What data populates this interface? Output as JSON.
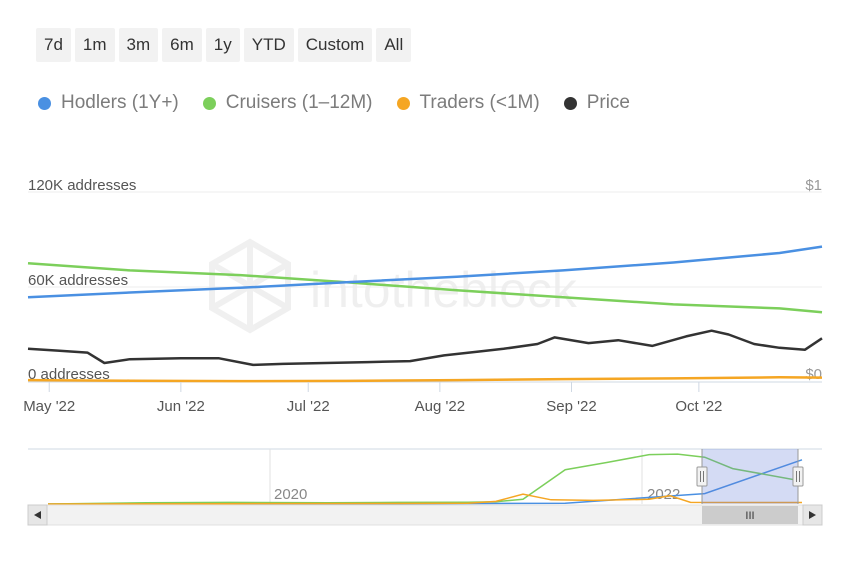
{
  "range_buttons": [
    "7d",
    "1m",
    "3m",
    "6m",
    "1y",
    "YTD",
    "Custom",
    "All"
  ],
  "legend": [
    {
      "label": "Hodlers (1Y+)",
      "color": "#4a90e2"
    },
    {
      "label": "Cruisers (1–12M)",
      "color": "#7ccf5b"
    },
    {
      "label": "Traders (<1M)",
      "color": "#f5a623"
    },
    {
      "label": "Price",
      "color": "#333333"
    }
  ],
  "watermark": "intotheblock",
  "navigator": {
    "year_labels": [
      "2020",
      "2022"
    ],
    "scroll_grip": "III"
  },
  "chart_data": {
    "type": "line",
    "y_axis_left": {
      "ticks": [
        "120K addresses",
        "60K addresses",
        "0 addresses"
      ],
      "range": [
        0,
        120000
      ]
    },
    "y_axis_right": {
      "ticks": [
        "$1",
        "$0"
      ],
      "range": [
        0,
        1
      ]
    },
    "x_tick_labels": [
      "May '22",
      "Jun '22",
      "Jul '22",
      "Aug '22",
      "Sep '22",
      "Oct '22"
    ],
    "x_range": [
      "2022-04-26",
      "2022-10-30"
    ],
    "series": [
      {
        "name": "Hodlers (1Y+)",
        "color": "#4a90e2",
        "axis": "left",
        "x": [
          "2022-04-26",
          "2022-05-20",
          "2022-06-15",
          "2022-07-10",
          "2022-08-05",
          "2022-08-30",
          "2022-09-25",
          "2022-10-20",
          "2022-10-30"
        ],
        "y": [
          53500,
          56500,
          59500,
          63000,
          66500,
          70500,
          75500,
          81500,
          85500
        ]
      },
      {
        "name": "Cruisers (1–12M)",
        "color": "#7ccf5b",
        "axis": "left",
        "x": [
          "2022-04-26",
          "2022-05-20",
          "2022-06-15",
          "2022-07-10",
          "2022-08-05",
          "2022-08-30",
          "2022-09-25",
          "2022-10-20",
          "2022-10-30"
        ],
        "y": [
          75000,
          70500,
          67500,
          63000,
          58000,
          53500,
          49000,
          46500,
          44000
        ]
      },
      {
        "name": "Traders (<1M)",
        "color": "#f5a623",
        "axis": "left",
        "x": [
          "2022-04-26",
          "2022-05-20",
          "2022-06-15",
          "2022-07-10",
          "2022-08-05",
          "2022-08-30",
          "2022-09-25",
          "2022-10-20",
          "2022-10-30"
        ],
        "y": [
          1200,
          800,
          600,
          700,
          1200,
          1800,
          2300,
          3000,
          2800
        ]
      },
      {
        "name": "Price",
        "color": "#333333",
        "axis": "right",
        "x": [
          "2022-04-26",
          "2022-05-03",
          "2022-05-10",
          "2022-05-14",
          "2022-05-20",
          "2022-06-01",
          "2022-06-10",
          "2022-06-18",
          "2022-06-25",
          "2022-07-05",
          "2022-07-15",
          "2022-07-25",
          "2022-08-02",
          "2022-08-10",
          "2022-08-16",
          "2022-08-24",
          "2022-08-28",
          "2022-09-05",
          "2022-09-12",
          "2022-09-20",
          "2022-09-28",
          "2022-10-04",
          "2022-10-08",
          "2022-10-14",
          "2022-10-20",
          "2022-10-26",
          "2022-10-30"
        ],
        "y": [
          0.175,
          0.165,
          0.155,
          0.1,
          0.12,
          0.125,
          0.125,
          0.09,
          0.095,
          0.1,
          0.105,
          0.11,
          0.14,
          0.16,
          0.175,
          0.2,
          0.235,
          0.205,
          0.22,
          0.19,
          0.24,
          0.27,
          0.25,
          0.2,
          0.18,
          0.17,
          0.23
        ]
      }
    ],
    "navigator_range": [
      "2018-05-01",
      "2022-10-30"
    ],
    "navigator_series": [
      {
        "name": "Hodlers (1Y+)",
        "color": "#4a90e2",
        "x": [
          "2018-05-01",
          "2019-06-01",
          "2020-06-01",
          "2021-06-01",
          "2022-04-01",
          "2022-10-30"
        ],
        "y": [
          0,
          0,
          500,
          1500,
          20000,
          85000
        ]
      },
      {
        "name": "Cruisers (1–12M)",
        "color": "#7ccf5b",
        "x": [
          "2018-05-01",
          "2018-12-01",
          "2019-06-01",
          "2020-01-01",
          "2020-06-01",
          "2020-11-01",
          "2021-01-01",
          "2021-03-01",
          "2021-06-01",
          "2021-09-01",
          "2021-12-01",
          "2022-02-01",
          "2022-04-01",
          "2022-06-01",
          "2022-10-30"
        ],
        "y": [
          0,
          2500,
          3000,
          2500,
          3000,
          3500,
          4500,
          9000,
          66000,
          80000,
          95000,
          96000,
          90000,
          68000,
          44000
        ]
      },
      {
        "name": "Traders (<1M)",
        "color": "#f5a623",
        "x": [
          "2018-05-01",
          "2019-06-01",
          "2020-06-01",
          "2020-11-01",
          "2021-01-01",
          "2021-03-01",
          "2021-05-01",
          "2021-08-01",
          "2021-12-01",
          "2022-01-15",
          "2022-03-01",
          "2022-10-30"
        ],
        "y": [
          0,
          500,
          1000,
          1500,
          5000,
          19000,
          8000,
          7000,
          9000,
          16000,
          3000,
          2800
        ]
      }
    ]
  }
}
